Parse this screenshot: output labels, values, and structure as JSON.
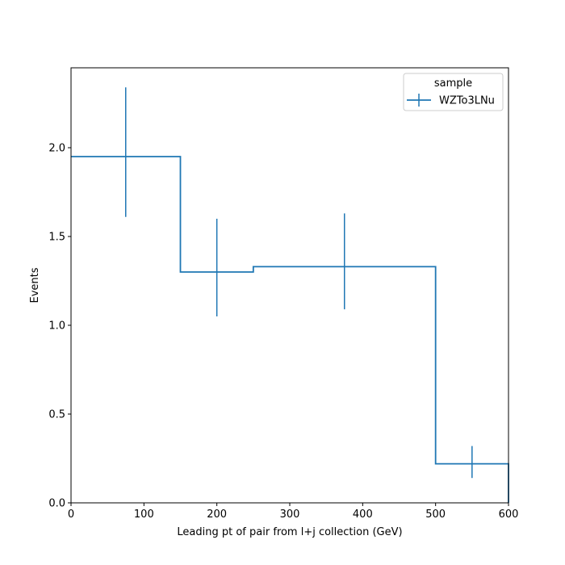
{
  "chart_data": {
    "type": "step",
    "xlabel": "Leading pt of pair from l+j collection (GeV)",
    "ylabel": "Events",
    "xlim": [
      0,
      600
    ],
    "ylim": [
      0,
      2.45
    ],
    "xticks": [
      0,
      100,
      200,
      300,
      400,
      500,
      600
    ],
    "yticks": [
      0.0,
      0.5,
      1.0,
      1.5,
      2.0
    ],
    "xtick_labels": [
      "0",
      "100",
      "200",
      "300",
      "400",
      "500",
      "600"
    ],
    "ytick_labels": [
      "0.0",
      "0.5",
      "1.0",
      "1.5",
      "2.0"
    ],
    "grid": false,
    "legend": {
      "title": "sample",
      "placement": "top-right",
      "entries": [
        "WZTo3LNu"
      ]
    },
    "series": [
      {
        "name": "WZTo3LNu",
        "color": "#1f77b4",
        "bin_edges": [
          0,
          150,
          250,
          500,
          600
        ],
        "values": [
          1.95,
          1.3,
          1.33,
          0.22
        ],
        "errors": [
          {
            "x": 75,
            "low": 1.61,
            "high": 2.34
          },
          {
            "x": 200,
            "low": 1.05,
            "high": 1.6
          },
          {
            "x": 375,
            "low": 1.09,
            "high": 1.63
          },
          {
            "x": 550,
            "low": 0.14,
            "high": 0.32
          }
        ]
      }
    ]
  }
}
